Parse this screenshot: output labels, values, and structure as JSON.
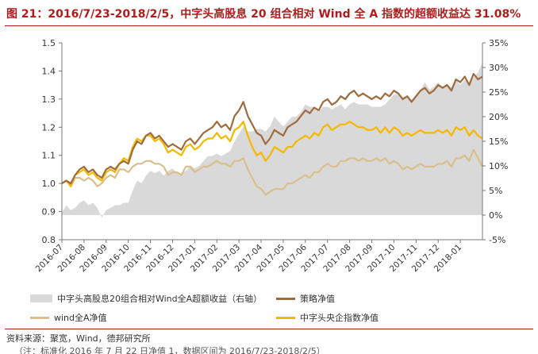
{
  "figure": {
    "title": "图 21：2016/7/23-2018/2/5，中字头高股息 20 组合相对 Wind 全 A 指数的超额收益达 31.08%",
    "source": "资料来源：聚宽，Wind，德邦研究所",
    "note": "（注：标准化 2016 年 7 月 22 日净值 1，数据区间为 2016/7/23-2018/2/5）"
  },
  "legend": {
    "excess": "中字头高股息20组合相对Wind全A超额收益（右轴）",
    "strategy": "策略净值",
    "winda": "wind全A净值",
    "soe": "中字头央企指数净值"
  },
  "colors": {
    "excess": "#d9d9d9",
    "strategy": "#9e6b3e",
    "winda": "#d9bf8c",
    "soe": "#f5b800",
    "title": "#b01c1c"
  },
  "chart_data": {
    "type": "line",
    "title": "图 21：2016/7/23-2018/2/5，中字头高股息 20 组合相对 Wind 全 A 指数的超额收益达 31.08%",
    "x_tick_labels": [
      "2016-07",
      "2016-08",
      "2016-09",
      "2016-10",
      "2016-11",
      "2016-12",
      "2017-01",
      "2017-02",
      "2017-03",
      "2017-04",
      "2017-05",
      "2017-06",
      "2017-07",
      "2017-08",
      "2017-09",
      "2017-10",
      "2017-11",
      "2017-12",
      "2018-01"
    ],
    "x_months_index": [
      0,
      1,
      2,
      3,
      4,
      5,
      6,
      7,
      8,
      9,
      10,
      11,
      12,
      13,
      14,
      15,
      16,
      17,
      18
    ],
    "ylim_left": [
      0.8,
      1.5
    ],
    "yticks_left": [
      "1.5",
      "1.4",
      "1.3",
      "1.2",
      "1.1",
      "1.0",
      "0.9",
      "0.8"
    ],
    "ylim_right": [
      -5,
      35
    ],
    "yticks_right": [
      "35%",
      "30%",
      "25%",
      "20%",
      "15%",
      "10%",
      "5%",
      "0%",
      "-5%"
    ],
    "grid": false,
    "legend_position": "bottom",
    "series": [
      {
        "name": "策略净值",
        "axis": "left",
        "x": [
          0,
          0.2,
          0.4,
          0.6,
          0.8,
          1.0,
          1.2,
          1.4,
          1.6,
          1.8,
          2.0,
          2.2,
          2.4,
          2.6,
          2.8,
          3.0,
          3.2,
          3.4,
          3.6,
          3.8,
          4.0,
          4.2,
          4.4,
          4.6,
          4.8,
          5.0,
          5.2,
          5.4,
          5.6,
          5.8,
          6.0,
          6.2,
          6.4,
          6.6,
          6.8,
          7.0,
          7.2,
          7.4,
          7.6,
          7.8,
          8.0,
          8.2,
          8.4,
          8.6,
          8.8,
          9.0,
          9.2,
          9.4,
          9.6,
          9.8,
          10.0,
          10.2,
          10.4,
          10.6,
          10.8,
          11.0,
          11.2,
          11.4,
          11.6,
          11.8,
          12.0,
          12.2,
          12.4,
          12.6,
          12.8,
          13.0,
          13.2,
          13.4,
          13.6,
          13.8,
          14.0,
          14.2,
          14.4,
          14.6,
          14.8,
          15.0,
          15.2,
          15.4,
          15.6,
          15.8,
          16.0,
          16.2,
          16.4,
          16.6,
          16.8,
          17.0,
          17.2,
          17.4,
          17.6,
          17.8,
          18.0,
          18.2,
          18.4,
          18.6,
          18.8,
          19.0
        ],
        "values": [
          1.0,
          1.01,
          1.0,
          1.03,
          1.05,
          1.06,
          1.04,
          1.05,
          1.03,
          1.02,
          1.05,
          1.06,
          1.05,
          1.07,
          1.08,
          1.07,
          1.12,
          1.15,
          1.14,
          1.17,
          1.18,
          1.16,
          1.17,
          1.15,
          1.13,
          1.14,
          1.13,
          1.12,
          1.15,
          1.16,
          1.14,
          1.16,
          1.18,
          1.19,
          1.2,
          1.22,
          1.2,
          1.21,
          1.19,
          1.24,
          1.26,
          1.29,
          1.24,
          1.21,
          1.18,
          1.17,
          1.14,
          1.16,
          1.19,
          1.18,
          1.17,
          1.2,
          1.21,
          1.22,
          1.24,
          1.26,
          1.25,
          1.27,
          1.26,
          1.29,
          1.3,
          1.28,
          1.29,
          1.31,
          1.3,
          1.32,
          1.33,
          1.31,
          1.32,
          1.31,
          1.3,
          1.31,
          1.3,
          1.32,
          1.31,
          1.33,
          1.32,
          1.3,
          1.31,
          1.29,
          1.31,
          1.33,
          1.34,
          1.32,
          1.33,
          1.35,
          1.34,
          1.35,
          1.33,
          1.37,
          1.36,
          1.38,
          1.35,
          1.39,
          1.37,
          1.38
        ]
      },
      {
        "name": "wind全A净值",
        "axis": "left",
        "x": [
          0,
          0.2,
          0.4,
          0.6,
          0.8,
          1.0,
          1.2,
          1.4,
          1.6,
          1.8,
          2.0,
          2.2,
          2.4,
          2.6,
          2.8,
          3.0,
          3.2,
          3.4,
          3.6,
          3.8,
          4.0,
          4.2,
          4.4,
          4.6,
          4.8,
          5.0,
          5.2,
          5.4,
          5.6,
          5.8,
          6.0,
          6.2,
          6.4,
          6.6,
          6.8,
          7.0,
          7.2,
          7.4,
          7.6,
          7.8,
          8.0,
          8.2,
          8.4,
          8.6,
          8.8,
          9.0,
          9.2,
          9.4,
          9.6,
          9.8,
          10.0,
          10.2,
          10.4,
          10.6,
          10.8,
          11.0,
          11.2,
          11.4,
          11.6,
          11.8,
          12.0,
          12.2,
          12.4,
          12.6,
          12.8,
          13.0,
          13.2,
          13.4,
          13.6,
          13.8,
          14.0,
          14.2,
          14.4,
          14.6,
          14.8,
          15.0,
          15.2,
          15.4,
          15.6,
          15.8,
          16.0,
          16.2,
          16.4,
          16.6,
          16.8,
          17.0,
          17.2,
          17.4,
          17.6,
          17.8,
          18.0,
          18.2,
          18.4,
          18.6,
          18.8,
          19.0
        ],
        "values": [
          1.0,
          1.01,
          0.99,
          1.02,
          1.02,
          1.01,
          1.02,
          1.01,
          0.99,
          1.0,
          1.02,
          1.03,
          1.02,
          1.05,
          1.05,
          1.04,
          1.06,
          1.07,
          1.07,
          1.08,
          1.08,
          1.07,
          1.07,
          1.06,
          1.03,
          1.04,
          1.04,
          1.03,
          1.06,
          1.06,
          1.04,
          1.05,
          1.06,
          1.06,
          1.07,
          1.08,
          1.07,
          1.07,
          1.06,
          1.08,
          1.08,
          1.09,
          1.05,
          1.02,
          0.99,
          0.98,
          0.96,
          0.97,
          0.98,
          0.98,
          0.98,
          1.0,
          1.0,
          1.01,
          1.02,
          1.03,
          1.02,
          1.04,
          1.04,
          1.06,
          1.07,
          1.06,
          1.06,
          1.08,
          1.08,
          1.09,
          1.09,
          1.08,
          1.09,
          1.08,
          1.08,
          1.09,
          1.08,
          1.09,
          1.07,
          1.08,
          1.07,
          1.05,
          1.06,
          1.05,
          1.06,
          1.07,
          1.06,
          1.06,
          1.06,
          1.07,
          1.07,
          1.08,
          1.06,
          1.09,
          1.09,
          1.1,
          1.08,
          1.12,
          1.09,
          1.06
        ]
      },
      {
        "name": "中字头央企指数净值",
        "axis": "left",
        "x": [
          0,
          0.2,
          0.4,
          0.6,
          0.8,
          1.0,
          1.2,
          1.4,
          1.6,
          1.8,
          2.0,
          2.2,
          2.4,
          2.6,
          2.8,
          3.0,
          3.2,
          3.4,
          3.6,
          3.8,
          4.0,
          4.2,
          4.4,
          4.6,
          4.8,
          5.0,
          5.2,
          5.4,
          5.6,
          5.8,
          6.0,
          6.2,
          6.4,
          6.6,
          6.8,
          7.0,
          7.2,
          7.4,
          7.6,
          7.8,
          8.0,
          8.2,
          8.4,
          8.6,
          8.8,
          9.0,
          9.2,
          9.4,
          9.6,
          9.8,
          10.0,
          10.2,
          10.4,
          10.6,
          10.8,
          11.0,
          11.2,
          11.4,
          11.6,
          11.8,
          12.0,
          12.2,
          12.4,
          12.6,
          12.8,
          13.0,
          13.2,
          13.4,
          13.6,
          13.8,
          14.0,
          14.2,
          14.4,
          14.6,
          14.8,
          15.0,
          15.2,
          15.4,
          15.6,
          15.8,
          16.0,
          16.2,
          16.4,
          16.6,
          16.8,
          17.0,
          17.2,
          17.4,
          17.6,
          17.8,
          18.0,
          18.2,
          18.4,
          18.6,
          18.8,
          19.0
        ],
        "values": [
          1.0,
          1.01,
          0.99,
          1.03,
          1.04,
          1.05,
          1.03,
          1.04,
          1.02,
          1.01,
          1.04,
          1.05,
          1.04,
          1.07,
          1.09,
          1.08,
          1.13,
          1.16,
          1.15,
          1.17,
          1.17,
          1.15,
          1.16,
          1.14,
          1.11,
          1.12,
          1.11,
          1.1,
          1.13,
          1.14,
          1.12,
          1.13,
          1.15,
          1.16,
          1.16,
          1.18,
          1.16,
          1.17,
          1.15,
          1.19,
          1.2,
          1.22,
          1.17,
          1.13,
          1.1,
          1.11,
          1.08,
          1.1,
          1.13,
          1.12,
          1.11,
          1.13,
          1.13,
          1.15,
          1.16,
          1.17,
          1.16,
          1.18,
          1.17,
          1.2,
          1.21,
          1.19,
          1.2,
          1.21,
          1.21,
          1.22,
          1.21,
          1.2,
          1.2,
          1.19,
          1.19,
          1.2,
          1.18,
          1.2,
          1.18,
          1.2,
          1.19,
          1.17,
          1.18,
          1.17,
          1.18,
          1.19,
          1.18,
          1.18,
          1.18,
          1.19,
          1.18,
          1.19,
          1.17,
          1.2,
          1.19,
          1.2,
          1.17,
          1.19,
          1.17,
          1.16
        ]
      },
      {
        "name": "中字头高股息20组合相对Wind全A超额收益（右轴）",
        "axis": "right",
        "type": "area",
        "x": [
          0,
          0.2,
          0.4,
          0.6,
          0.8,
          1.0,
          1.2,
          1.4,
          1.6,
          1.8,
          2.0,
          2.2,
          2.4,
          2.6,
          2.8,
          3.0,
          3.2,
          3.4,
          3.6,
          3.8,
          4.0,
          4.2,
          4.4,
          4.6,
          4.8,
          5.0,
          5.2,
          5.4,
          5.6,
          5.8,
          6.0,
          6.2,
          6.4,
          6.6,
          6.8,
          7.0,
          7.2,
          7.4,
          7.6,
          7.8,
          8.0,
          8.2,
          8.4,
          8.6,
          8.8,
          9.0,
          9.2,
          9.4,
          9.6,
          9.8,
          10.0,
          10.2,
          10.4,
          10.6,
          10.8,
          11.0,
          11.2,
          11.4,
          11.6,
          11.8,
          12.0,
          12.2,
          12.4,
          12.6,
          12.8,
          13.0,
          13.2,
          13.4,
          13.6,
          13.8,
          14.0,
          14.2,
          14.4,
          14.6,
          14.8,
          15.0,
          15.2,
          15.4,
          15.6,
          15.8,
          16.0,
          16.2,
          16.4,
          16.6,
          16.8,
          17.0,
          17.2,
          17.4,
          17.6,
          17.8,
          18.0,
          18.2,
          18.4,
          18.6,
          18.8,
          19.0
        ],
        "values": [
          0.5,
          2.0,
          1.0,
          1.5,
          2.5,
          3.0,
          2.0,
          2.5,
          1.5,
          -0.5,
          1.0,
          1.5,
          2.0,
          2.0,
          2.5,
          2.5,
          5.0,
          7.0,
          6.5,
          8.0,
          9.0,
          8.5,
          9.0,
          8.0,
          9.0,
          9.5,
          8.5,
          8.5,
          9.0,
          10.0,
          9.5,
          10.0,
          11.0,
          12.0,
          12.0,
          12.5,
          12.0,
          12.5,
          13.0,
          15.0,
          16.5,
          18.0,
          17.0,
          17.0,
          17.5,
          17.5,
          17.0,
          18.0,
          20.0,
          19.0,
          18.0,
          19.0,
          20.0,
          20.0,
          21.0,
          22.5,
          22.0,
          22.0,
          21.0,
          22.0,
          22.0,
          21.5,
          22.0,
          22.5,
          21.5,
          22.5,
          23.0,
          22.5,
          22.5,
          22.5,
          22.0,
          22.0,
          22.0,
          22.5,
          23.5,
          24.5,
          24.5,
          24.0,
          24.0,
          23.5,
          24.5,
          25.5,
          27.0,
          25.5,
          26.0,
          27.0,
          26.0,
          26.5,
          26.0,
          27.5,
          26.5,
          27.5,
          26.5,
          28.0,
          29.0,
          31.0
        ]
      }
    ]
  }
}
